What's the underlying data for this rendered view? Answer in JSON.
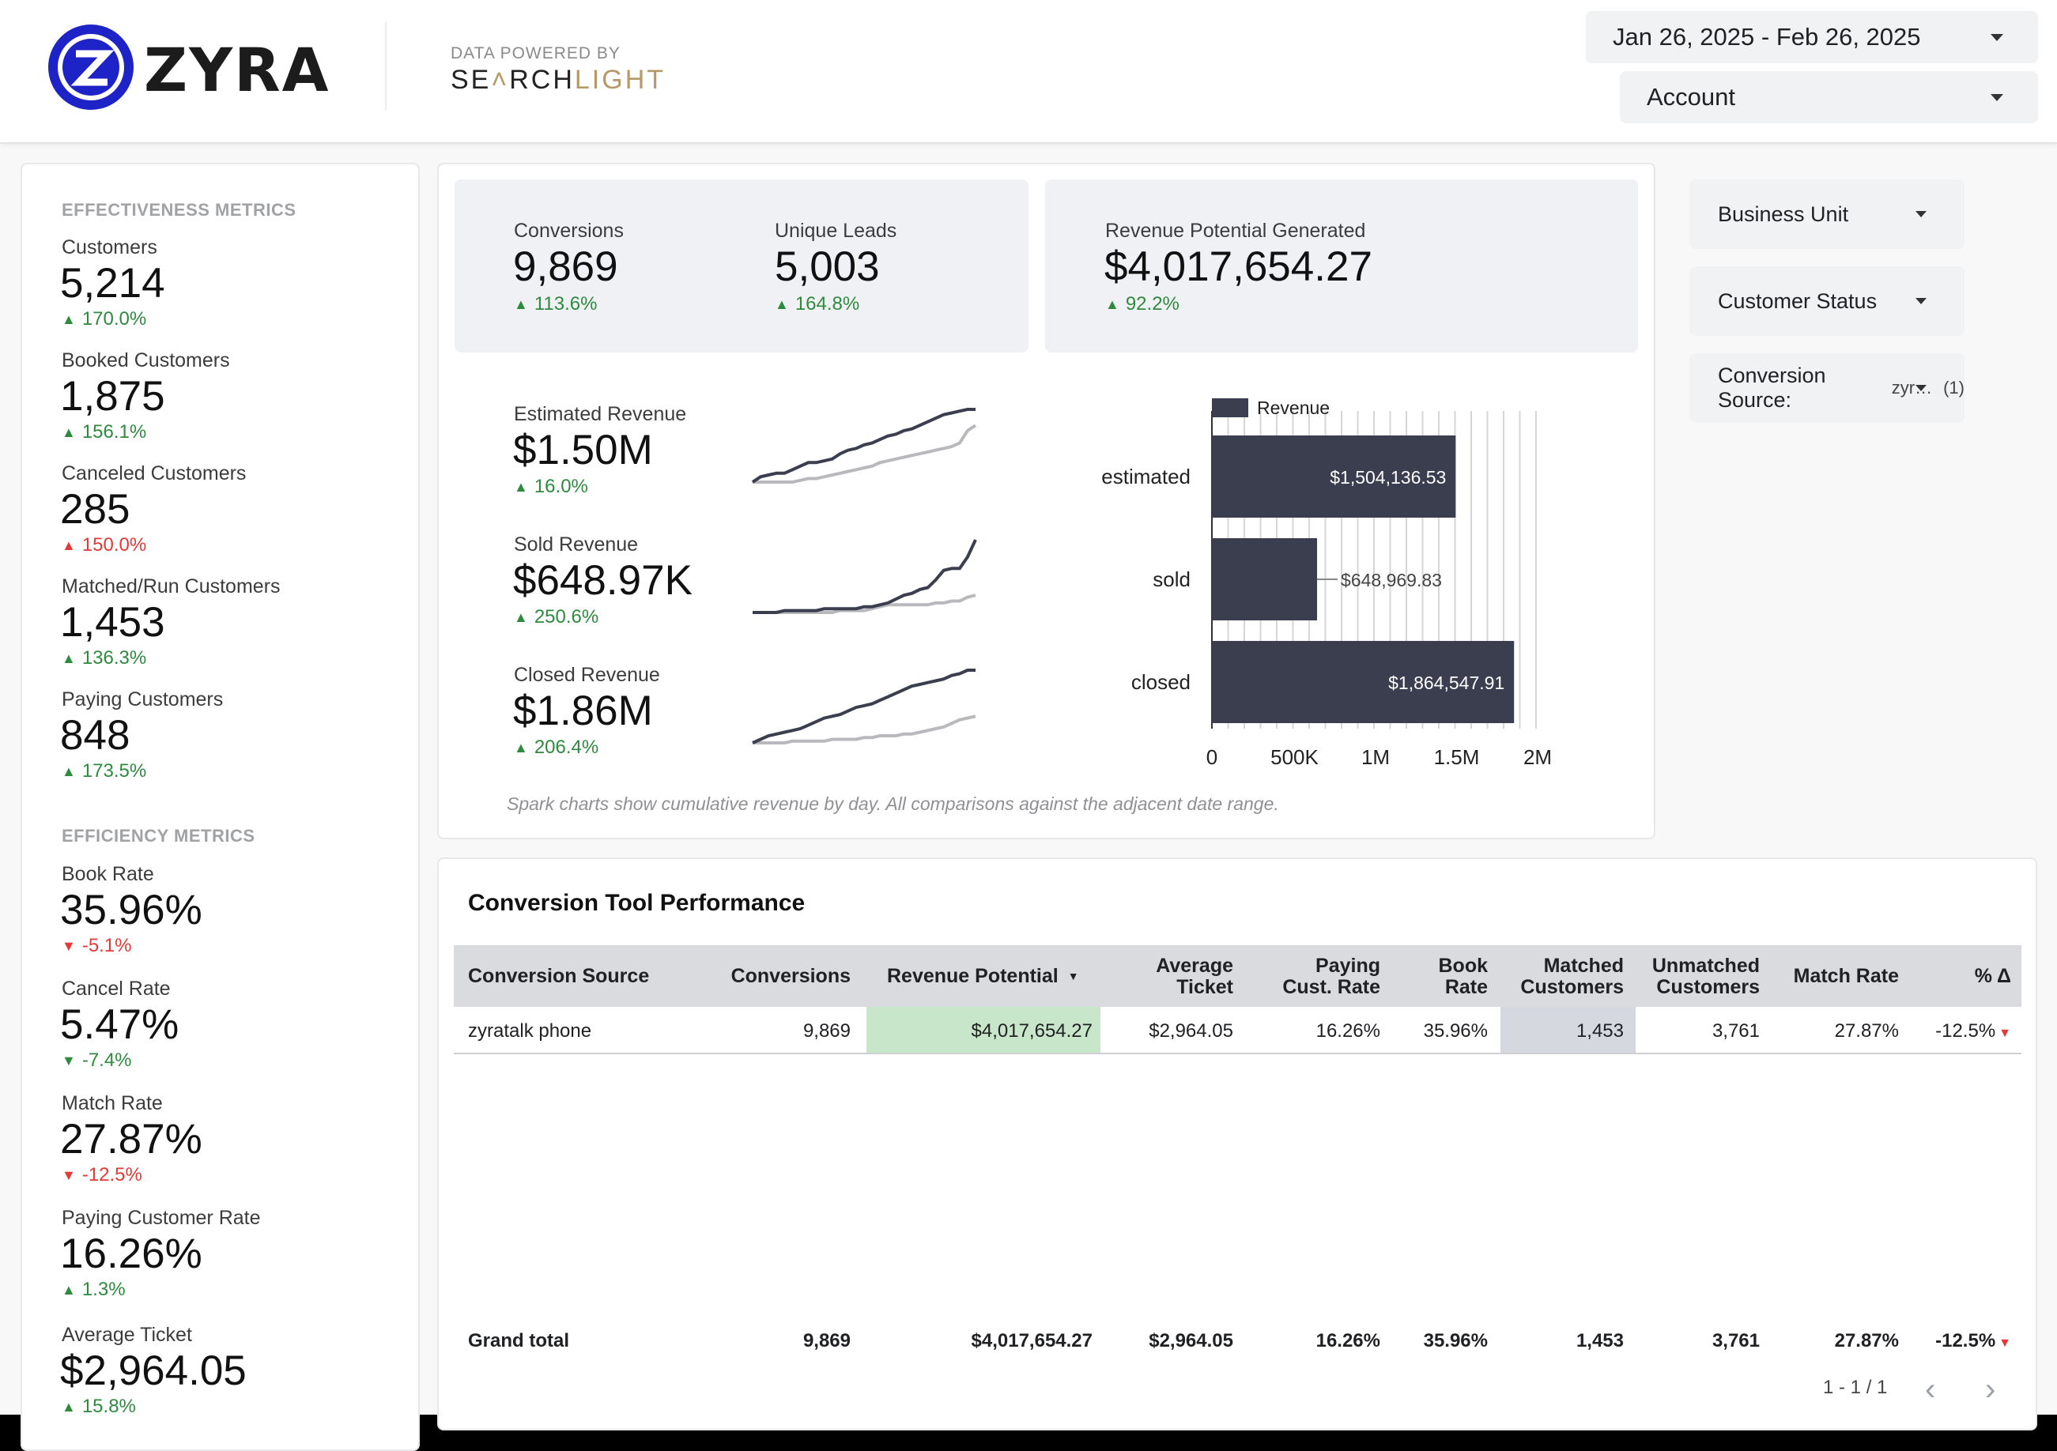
{
  "header": {
    "brand": "ZYRA",
    "powered_by": "DATA POWERED BY",
    "partner_pre": "SE",
    "partner_mid": "RCH",
    "partner_gold": "LIGHT",
    "date_range": "Jan 26, 2025 - Feb 26, 2025",
    "account_label": "Account"
  },
  "sidebar": {
    "effectiveness_title": "EFFECTIVENESS METRICS",
    "efficiency_title": "EFFICIENCY METRICS",
    "effectiveness": [
      {
        "label": "Customers",
        "value": "5,214",
        "delta": "170.0%",
        "dir": "up",
        "good": true
      },
      {
        "label": "Booked Customers",
        "value": "1,875",
        "delta": "156.1%",
        "dir": "up",
        "good": true
      },
      {
        "label": "Canceled Customers",
        "value": "285",
        "delta": "150.0%",
        "dir": "up",
        "good": false
      },
      {
        "label": "Matched/Run Customers",
        "value": "1,453",
        "delta": "136.3%",
        "dir": "up",
        "good": true
      },
      {
        "label": "Paying Customers",
        "value": "848",
        "delta": "173.5%",
        "dir": "up",
        "good": true
      }
    ],
    "efficiency": [
      {
        "label": "Book Rate",
        "value": "35.96%",
        "delta": "-5.1%",
        "dir": "down",
        "good": false
      },
      {
        "label": "Cancel Rate",
        "value": "5.47%",
        "delta": "-7.4%",
        "dir": "down",
        "good": true
      },
      {
        "label": "Match Rate",
        "value": "27.87%",
        "delta": "-12.5%",
        "dir": "down",
        "good": false
      },
      {
        "label": "Paying Customer Rate",
        "value": "16.26%",
        "delta": "1.3%",
        "dir": "up",
        "good": true
      },
      {
        "label": "Average Ticket",
        "value": "$2,964.05",
        "delta": "15.8%",
        "dir": "up",
        "good": true
      }
    ]
  },
  "kpis": {
    "conversions": {
      "label": "Conversions",
      "value": "9,869",
      "delta": "113.6%"
    },
    "unique_leads": {
      "label": "Unique Leads",
      "value": "5,003",
      "delta": "164.8%"
    },
    "revenue_potential": {
      "label": "Revenue Potential Generated",
      "value": "$4,017,654.27",
      "delta": "92.2%"
    }
  },
  "revenue_metrics": [
    {
      "label": "Estimated Revenue",
      "value": "$1.50M",
      "delta": "16.0%"
    },
    {
      "label": "Sold Revenue",
      "value": "$648.97K",
      "delta": "250.6%"
    },
    {
      "label": "Closed Revenue",
      "value": "$1.86M",
      "delta": "206.4%"
    }
  ],
  "spark_colors": {
    "current": "#3a3e4f",
    "previous": "#b9b9bd"
  },
  "sparklines": [
    {
      "current": [
        0,
        6,
        8,
        10,
        10,
        14,
        18,
        22,
        22,
        24,
        26,
        32,
        36,
        38,
        42,
        44,
        48,
        52,
        54,
        58,
        60,
        64,
        68,
        72,
        76,
        78,
        80,
        82,
        82
      ],
      "previous": [
        0,
        0,
        0,
        0,
        0,
        0,
        2,
        4,
        4,
        6,
        8,
        10,
        12,
        14,
        16,
        18,
        22,
        24,
        26,
        28,
        30,
        32,
        34,
        36,
        38,
        40,
        44,
        58,
        64
      ]
    },
    {
      "current": [
        0,
        0,
        0,
        0,
        2,
        2,
        2,
        2,
        2,
        4,
        4,
        4,
        4,
        4,
        6,
        6,
        8,
        10,
        14,
        18,
        20,
        24,
        26,
        34,
        44,
        46,
        46,
        58,
        76
      ],
      "previous": [
        0,
        0,
        0,
        0,
        0,
        0,
        0,
        0,
        0,
        0,
        0,
        2,
        2,
        2,
        2,
        4,
        6,
        8,
        8,
        8,
        8,
        8,
        8,
        10,
        10,
        12,
        12,
        16,
        18
      ]
    },
    {
      "current": [
        0,
        4,
        8,
        10,
        12,
        14,
        16,
        20,
        24,
        28,
        30,
        32,
        36,
        40,
        42,
        44,
        48,
        52,
        56,
        60,
        64,
        66,
        68,
        70,
        72,
        76,
        78,
        82,
        82
      ],
      "previous": [
        0,
        0,
        0,
        0,
        0,
        2,
        2,
        2,
        2,
        2,
        4,
        4,
        4,
        4,
        6,
        6,
        8,
        8,
        8,
        10,
        10,
        12,
        14,
        16,
        18,
        22,
        26,
        28,
        30
      ]
    }
  ],
  "chart_data": {
    "type": "bar",
    "orientation": "horizontal",
    "legend": "Revenue",
    "color": "#3a3e4f",
    "categories": [
      "estimated",
      "sold",
      "closed"
    ],
    "series": [
      {
        "name": "Revenue",
        "values": [
          1504136.53,
          648969.83,
          1864547.91
        ]
      }
    ],
    "data_labels": [
      "$1,504,136.53",
      "$648,969.83",
      "$1,864,547.91"
    ],
    "x_ticks": [
      "0",
      "500K",
      "1M",
      "1.5M",
      "2M"
    ],
    "x_tick_values": [
      0,
      500000,
      1000000,
      1500000,
      2000000
    ],
    "xlim": [
      0,
      2000000
    ],
    "grid": true,
    "legend_position": "top-left"
  },
  "note": "Spark charts show cumulative revenue by day. All comparisons against the adjacent date range.",
  "filters": [
    {
      "label": "Business Unit",
      "extra": "",
      "count": ""
    },
    {
      "label": "Customer Status",
      "extra": "",
      "count": ""
    },
    {
      "label": "Conversion Source:",
      "extra": "zyr…",
      "count": "(1)"
    }
  ],
  "table": {
    "title": "Conversion Tool Performance",
    "headers": {
      "source": "Conversion Source",
      "conversions": "Conversions",
      "revenue": "Revenue Potential",
      "avg_ticket": [
        "Average",
        "Ticket"
      ],
      "paying_rate": [
        "Paying",
        "Cust. Rate"
      ],
      "book_rate": [
        "Book",
        "Rate"
      ],
      "matched": [
        "Matched",
        "Customers"
      ],
      "unmatched": [
        "Unmatched",
        "Customers"
      ],
      "match_rate": "Match Rate",
      "pct_change": "% Δ"
    },
    "highlight_colors": {
      "revenue": "#c8e6c9",
      "matched": "#d6d8e0"
    },
    "row": {
      "source": "zyratalk phone",
      "conversions": "9,869",
      "revenue": "$4,017,654.27",
      "avg_ticket": "$2,964.05",
      "paying_rate": "16.26%",
      "book_rate": "35.96%",
      "matched": "1,453",
      "unmatched": "3,761",
      "match_rate": "27.87%",
      "pct_change": "-12.5%"
    },
    "total": {
      "label": "Grand total",
      "conversions": "9,869",
      "revenue": "$4,017,654.27",
      "avg_ticket": "$2,964.05",
      "paying_rate": "16.26%",
      "book_rate": "35.96%",
      "matched": "1,453",
      "unmatched": "3,761",
      "match_rate": "27.87%",
      "pct_change": "-12.5%"
    },
    "pager": "1 - 1 / 1"
  }
}
